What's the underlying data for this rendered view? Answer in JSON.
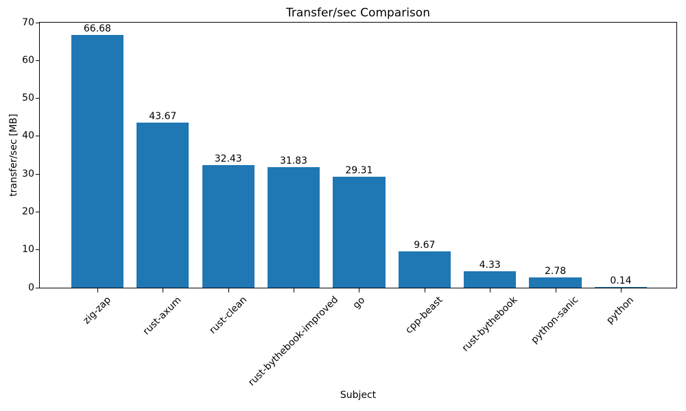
{
  "chart_data": {
    "type": "bar",
    "title": "Transfer/sec Comparison",
    "xlabel": "Subject",
    "ylabel": "transfer/sec [MB]",
    "categories": [
      "zig-zap",
      "rust-axum",
      "rust-clean",
      "rust-bythebook-improved",
      "go",
      "cpp-beast",
      "rust-bythebook",
      "python-sanic",
      "python"
    ],
    "values": [
      66.68,
      43.67,
      32.43,
      31.83,
      29.31,
      9.67,
      4.33,
      2.78,
      0.14
    ],
    "value_labels": [
      "66.68",
      "43.67",
      "32.43",
      "31.83",
      "29.31",
      "9.67",
      "4.33",
      "2.78",
      "0.14"
    ],
    "ylim": [
      0,
      70
    ],
    "yticks": [
      0,
      10,
      20,
      30,
      40,
      50,
      60,
      70
    ],
    "bar_color": "#1f77b4",
    "axis_color": "#000000",
    "text_color": "#000000",
    "background_color": "#ffffff",
    "grid": false,
    "legend": false,
    "x_tick_rotation_deg": 45
  }
}
